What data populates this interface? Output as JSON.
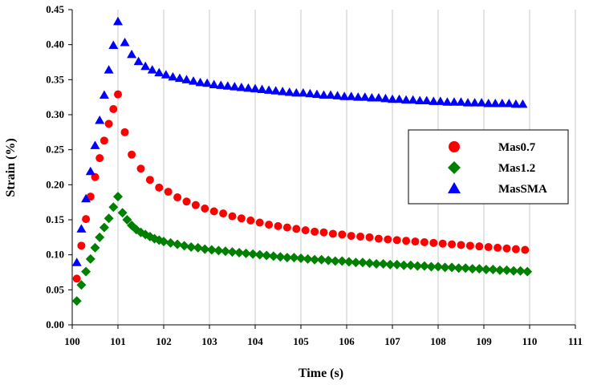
{
  "chart_data": {
    "type": "scatter",
    "title": "",
    "xlabel": "Time (s)",
    "ylabel": "Strain (%)",
    "xlim": [
      100,
      111
    ],
    "ylim": [
      0,
      0.45
    ],
    "xticks": [
      "100",
      "101",
      "102",
      "103",
      "104",
      "105",
      "106",
      "107",
      "108",
      "109",
      "110",
      "111"
    ],
    "yticks": [
      "0.00",
      "0.05",
      "0.10",
      "0.15",
      "0.20",
      "0.25",
      "0.30",
      "0.35",
      "0.40",
      "0.45"
    ],
    "grid": "vertical",
    "legend_position": "right",
    "series": [
      {
        "name": "Mas0.7",
        "marker": "circle",
        "color": "#ff0000",
        "x": [
          100.1,
          100.2,
          100.3,
          100.4,
          100.5,
          100.6,
          100.7,
          100.8,
          100.9,
          101.0,
          101.15,
          101.3,
          101.5,
          101.7,
          101.9,
          102.1,
          102.3,
          102.5,
          102.7,
          102.9,
          103.1,
          103.3,
          103.5,
          103.7,
          103.9,
          104.1,
          104.3,
          104.5,
          104.7,
          104.9,
          105.1,
          105.3,
          105.5,
          105.7,
          105.9,
          106.1,
          106.3,
          106.5,
          106.7,
          106.9,
          107.1,
          107.3,
          107.5,
          107.7,
          107.9,
          108.1,
          108.3,
          108.5,
          108.7,
          108.9,
          109.1,
          109.3,
          109.5,
          109.7,
          109.9
        ],
        "y": [
          0.066,
          0.113,
          0.151,
          0.183,
          0.211,
          0.238,
          0.263,
          0.287,
          0.308,
          0.329,
          0.275,
          0.243,
          0.223,
          0.207,
          0.196,
          0.19,
          0.182,
          0.176,
          0.171,
          0.166,
          0.162,
          0.159,
          0.155,
          0.152,
          0.149,
          0.146,
          0.143,
          0.141,
          0.139,
          0.137,
          0.135,
          0.133,
          0.132,
          0.13,
          0.129,
          0.127,
          0.126,
          0.125,
          0.123,
          0.122,
          0.121,
          0.12,
          0.119,
          0.118,
          0.117,
          0.116,
          0.115,
          0.114,
          0.113,
          0.112,
          0.111,
          0.11,
          0.109,
          0.108,
          0.107
        ]
      },
      {
        "name": "Mas1.2",
        "marker": "diamond",
        "color": "#008000",
        "x": [
          100.1,
          100.2,
          100.3,
          100.4,
          100.5,
          100.6,
          100.7,
          100.8,
          100.9,
          101.0,
          101.1,
          101.2,
          101.3,
          101.4,
          101.5,
          101.6,
          101.7,
          101.8,
          101.9,
          102.0,
          102.15,
          102.3,
          102.45,
          102.6,
          102.75,
          102.9,
          103.05,
          103.2,
          103.35,
          103.5,
          103.65,
          103.8,
          103.95,
          104.1,
          104.25,
          104.4,
          104.55,
          104.7,
          104.85,
          105.0,
          105.15,
          105.3,
          105.45,
          105.6,
          105.75,
          105.9,
          106.05,
          106.2,
          106.35,
          106.5,
          106.65,
          106.8,
          106.95,
          107.1,
          107.25,
          107.4,
          107.55,
          107.7,
          107.85,
          108.0,
          108.15,
          108.3,
          108.45,
          108.6,
          108.75,
          108.9,
          109.05,
          109.2,
          109.35,
          109.5,
          109.65,
          109.8,
          109.95
        ],
        "y": [
          0.034,
          0.057,
          0.076,
          0.094,
          0.11,
          0.125,
          0.139,
          0.152,
          0.168,
          0.183,
          0.16,
          0.15,
          0.142,
          0.136,
          0.132,
          0.129,
          0.126,
          0.123,
          0.121,
          0.119,
          0.117,
          0.115,
          0.113,
          0.111,
          0.11,
          0.108,
          0.107,
          0.106,
          0.105,
          0.104,
          0.103,
          0.102,
          0.101,
          0.1,
          0.099,
          0.098,
          0.097,
          0.096,
          0.096,
          0.095,
          0.094,
          0.093,
          0.093,
          0.092,
          0.091,
          0.091,
          0.09,
          0.089,
          0.089,
          0.088,
          0.087,
          0.087,
          0.086,
          0.086,
          0.085,
          0.085,
          0.084,
          0.084,
          0.083,
          0.083,
          0.082,
          0.082,
          0.081,
          0.081,
          0.08,
          0.08,
          0.079,
          0.079,
          0.078,
          0.078,
          0.077,
          0.077,
          0.076
        ]
      },
      {
        "name": "MasSMA",
        "marker": "triangle",
        "color": "#0000ff",
        "x": [
          100.1,
          100.2,
          100.3,
          100.4,
          100.5,
          100.6,
          100.7,
          100.8,
          100.9,
          101.0,
          101.15,
          101.3,
          101.45,
          101.6,
          101.75,
          101.9,
          102.05,
          102.2,
          102.35,
          102.5,
          102.65,
          102.8,
          102.95,
          103.1,
          103.25,
          103.4,
          103.55,
          103.7,
          103.85,
          104.0,
          104.15,
          104.3,
          104.45,
          104.6,
          104.75,
          104.9,
          105.05,
          105.2,
          105.35,
          105.5,
          105.65,
          105.8,
          105.95,
          106.1,
          106.25,
          106.4,
          106.55,
          106.7,
          106.85,
          107.0,
          107.15,
          107.3,
          107.45,
          107.6,
          107.75,
          107.9,
          108.05,
          108.2,
          108.35,
          108.5,
          108.65,
          108.8,
          108.95,
          109.1,
          109.25,
          109.4,
          109.55,
          109.7,
          109.85
        ],
        "y": [
          0.089,
          0.137,
          0.18,
          0.219,
          0.256,
          0.292,
          0.328,
          0.364,
          0.399,
          0.433,
          0.403,
          0.386,
          0.376,
          0.369,
          0.364,
          0.36,
          0.357,
          0.354,
          0.352,
          0.35,
          0.348,
          0.346,
          0.345,
          0.343,
          0.342,
          0.341,
          0.34,
          0.339,
          0.338,
          0.337,
          0.336,
          0.335,
          0.334,
          0.333,
          0.332,
          0.331,
          0.331,
          0.33,
          0.329,
          0.328,
          0.328,
          0.327,
          0.326,
          0.326,
          0.325,
          0.325,
          0.324,
          0.324,
          0.323,
          0.322,
          0.322,
          0.321,
          0.321,
          0.32,
          0.32,
          0.319,
          0.319,
          0.318,
          0.318,
          0.318,
          0.317,
          0.317,
          0.317,
          0.316,
          0.316,
          0.316,
          0.316,
          0.315,
          0.315
        ]
      }
    ]
  }
}
